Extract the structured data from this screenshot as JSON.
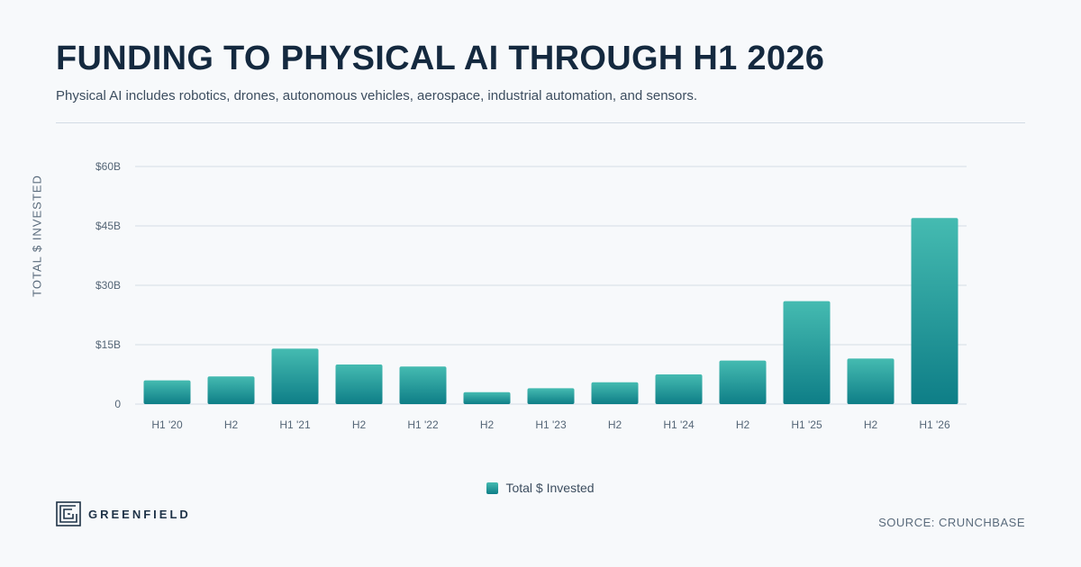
{
  "header": {
    "title": "FUNDING TO PHYSICAL AI THROUGH H1 2026",
    "subtitle": "Physical AI includes robotics, drones, autonomous vehicles, aerospace, industrial automation, and sensors."
  },
  "footer": {
    "brand": "GREENFIELD",
    "brand_icon": "greenfield-logo-icon",
    "source": "SOURCE: CRUNCHBASE"
  },
  "colors": {
    "title": "#14293f",
    "bar_top": "#45bbb1",
    "bar_bottom": "#0e7e87",
    "grid": "#dbe3ea"
  },
  "chart_data": {
    "type": "bar",
    "categories": [
      "H1 '20",
      "H2",
      "H1 '21",
      "H2",
      "H1 '22",
      "H2",
      "H1 '23",
      "H2",
      "H1 '24",
      "H2",
      "H1 '25",
      "H2",
      "H1 '26"
    ],
    "series": [
      {
        "name": "Total $ Invested",
        "values": [
          6.0,
          7.0,
          14.0,
          10.0,
          9.5,
          3.0,
          4.0,
          5.5,
          7.5,
          11.0,
          26.0,
          11.5,
          47.0
        ]
      }
    ],
    "ylabel": "TOTAL $ INVESTED",
    "ylim": [
      0,
      60
    ],
    "yticks": [
      0,
      15,
      30,
      45,
      60
    ],
    "ytick_labels": [
      "0",
      "$15B",
      "$30B",
      "$45B",
      "$60B"
    ],
    "unit": "billions USD",
    "grid": true,
    "legend_position": "bottom-center"
  }
}
